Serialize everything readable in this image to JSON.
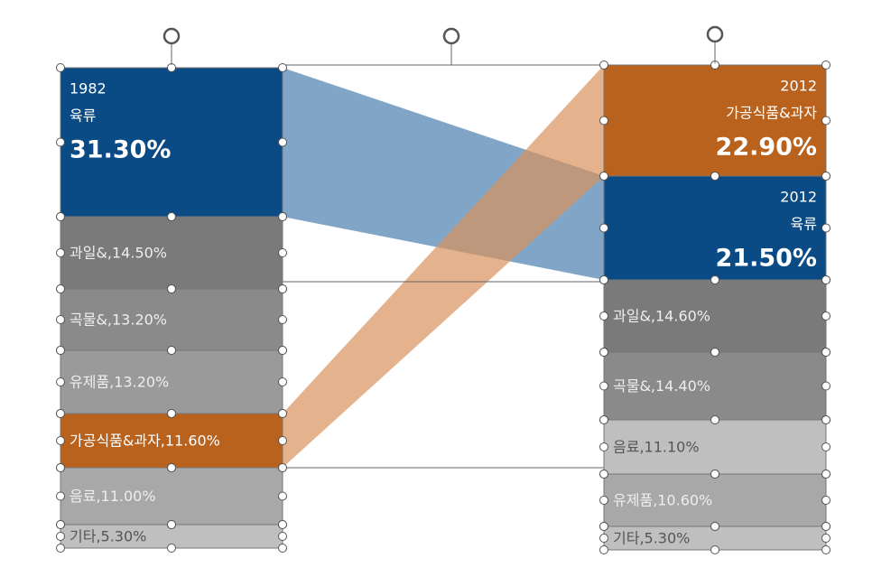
{
  "left": {
    "blocks": [
      {
        "lines": [
          "1982",
          "육류",
          "31.30%"
        ]
      },
      {
        "lines": [
          "과일&,14.50%"
        ]
      },
      {
        "lines": [
          "곡물&,13.20%"
        ]
      },
      {
        "lines": [
          "유제품,13.20%"
        ]
      },
      {
        "lines": [
          "가공식품&과자,11.60%"
        ]
      },
      {
        "lines": [
          "음료,11.00%"
        ]
      },
      {
        "lines": [
          "기타,5.30%"
        ]
      }
    ]
  },
  "right": {
    "blocks": [
      {
        "lines": [
          "2012",
          "가공식품&과자",
          "22.90%"
        ]
      },
      {
        "lines": [
          "2012",
          "육류",
          "21.50%"
        ]
      },
      {
        "lines": [
          "과일&,14.60%"
        ]
      },
      {
        "lines": [
          "곡물&,14.40%"
        ]
      },
      {
        "lines": [
          "음료,11.10%"
        ]
      },
      {
        "lines": [
          "유제품,10.60%"
        ]
      },
      {
        "lines": [
          "기타,5.30%"
        ]
      }
    ]
  }
}
